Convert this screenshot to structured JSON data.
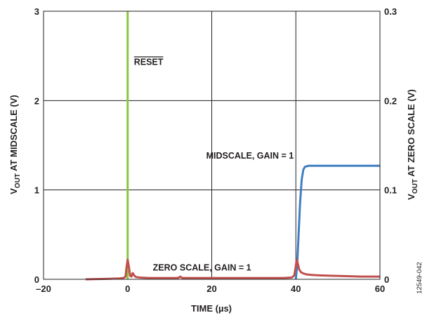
{
  "chart_data": {
    "type": "line",
    "xlabel": "TIME (µs)",
    "ylabel_left": {
      "main": "V",
      "sub": "OUT",
      "rest": " AT MIDSCALE (V)"
    },
    "ylabel_right": {
      "main": "V",
      "sub": "OUT",
      "rest": " AT ZERO SCALE (V)"
    },
    "xlim": [
      -20,
      60
    ],
    "ylim_left": [
      0,
      3
    ],
    "ylim_right": [
      0,
      0.3
    ],
    "x_ticks": [
      -20,
      0,
      20,
      40,
      60
    ],
    "x_tick_labels": [
      "–20",
      "0",
      "20",
      "40",
      "60"
    ],
    "y_left_ticks": [
      0,
      1,
      2,
      3
    ],
    "y_left_tick_labels": [
      "0",
      "1",
      "2",
      "3"
    ],
    "y_right_ticks": [
      0,
      0.1,
      0.2,
      0.3
    ],
    "y_right_tick_labels": [
      "0",
      "0.1",
      "0.2",
      "0.3"
    ],
    "grid": true,
    "series": [
      {
        "name": "RESET",
        "axis": "left",
        "color": "#8dc63f",
        "x": [
          0,
          0
        ],
        "y": [
          0,
          3
        ]
      },
      {
        "name": "MIDSCALE, GAIN = 1",
        "axis": "left",
        "color": "#3f7fc1",
        "x": [
          40,
          40.3,
          40.6,
          41.0,
          41.4,
          41.8,
          42.2,
          43,
          45,
          50,
          55,
          60
        ],
        "y": [
          0,
          0.15,
          0.45,
          0.85,
          1.12,
          1.23,
          1.26,
          1.27,
          1.27,
          1.27,
          1.27,
          1.27
        ]
      },
      {
        "name": "ZERO SCALE, GAIN = 1",
        "axis": "right",
        "color": "#c0504d",
        "x": [
          -10,
          -5,
          -2,
          -1,
          -0.5,
          -0.3,
          0,
          0.3,
          0.6,
          0.9,
          1.2,
          1.6,
          2.0,
          3,
          5,
          8,
          12,
          12.5,
          13,
          13.5,
          14,
          18,
          22,
          26,
          30,
          34,
          37,
          39,
          39.6,
          39.9,
          40.2,
          40.5,
          40.8,
          41.2,
          41.8,
          42.5,
          43.5,
          45,
          48,
          52,
          56,
          60
        ],
        "y": [
          0.0,
          0.0005,
          0.001,
          0.0015,
          0.003,
          0.012,
          0.022,
          0.014,
          0.004,
          0.003,
          0.007,
          0.004,
          0.0025,
          0.002,
          0.0015,
          0.0015,
          0.0015,
          0.003,
          0.0015,
          0.0015,
          0.0015,
          0.0015,
          0.0015,
          0.0015,
          0.0015,
          0.0015,
          0.0015,
          0.002,
          0.004,
          0.012,
          0.022,
          0.017,
          0.011,
          0.008,
          0.0065,
          0.0055,
          0.005,
          0.0045,
          0.004,
          0.0035,
          0.003,
          0.003
        ]
      }
    ],
    "annotations": [
      {
        "text": "RESET",
        "overline": true,
        "x": 1.5,
        "y": 2.4,
        "axis": "left",
        "anchor": "start"
      },
      {
        "text": "MIDSCALE, GAIN = 1",
        "x": 39.5,
        "y": 1.35,
        "axis": "left",
        "anchor": "end"
      },
      {
        "text": "ZERO SCALE, GAIN = 1",
        "x": 6,
        "y": 0.1,
        "axis": "left",
        "anchor": "start"
      }
    ]
  },
  "figure_id": "12549-042"
}
